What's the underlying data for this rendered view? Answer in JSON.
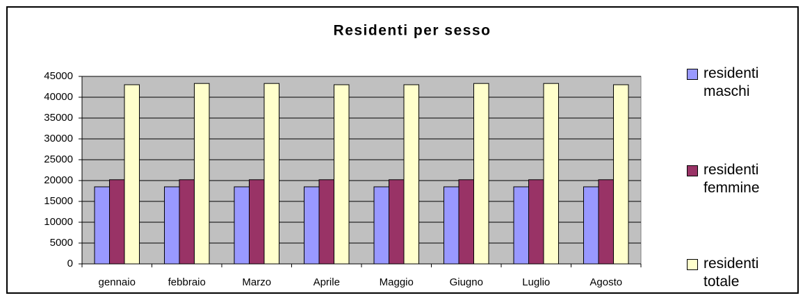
{
  "chart_data": {
    "type": "bar",
    "title": "Residenti per sesso",
    "categories": [
      "gennaio",
      "febbraio",
      "Marzo",
      "Aprile",
      "Maggio",
      "Giugno",
      "Luglio",
      "Agosto"
    ],
    "series": [
      {
        "name": "residenti maschi",
        "color": "#9999ff",
        "values": [
          18500,
          18500,
          18500,
          18500,
          18500,
          18500,
          18500,
          18500
        ]
      },
      {
        "name": "residenti femmine",
        "color": "#993366",
        "values": [
          20200,
          20200,
          20200,
          20200,
          20200,
          20200,
          20200,
          20200
        ]
      },
      {
        "name": "residenti totale",
        "color": "#ffffcc",
        "values": [
          43000,
          43300,
          43300,
          43000,
          43000,
          43300,
          43300,
          43000
        ]
      }
    ],
    "ylim": [
      0,
      45000
    ],
    "yticks": [
      0,
      5000,
      10000,
      15000,
      20000,
      25000,
      30000,
      35000,
      40000,
      45000
    ],
    "grid": true,
    "legend": "right"
  }
}
